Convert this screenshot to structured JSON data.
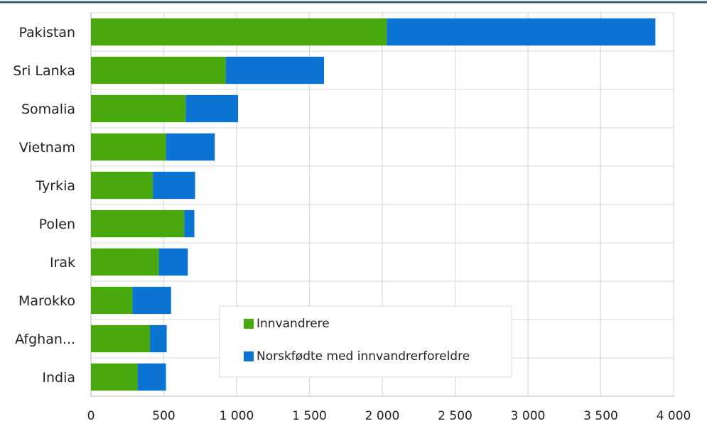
{
  "chart_data": {
    "type": "bar",
    "orientation": "horizontal",
    "stacked": true,
    "title": "",
    "categories": [
      "Pakistan",
      "Sri Lanka",
      "Somalia",
      "Vietnam",
      "Tyrkia",
      "Polen",
      "Irak",
      "Marokko",
      "Afghan...",
      "India"
    ],
    "series": [
      {
        "name": "Innvandrere",
        "color": "#48a80e",
        "values": [
          2030,
          925,
          650,
          515,
          425,
          640,
          465,
          285,
          405,
          320
        ]
      },
      {
        "name": "Norskfødte med innvandrerforeldre",
        "color": "#0b74d3",
        "values": [
          1845,
          675,
          360,
          335,
          290,
          70,
          200,
          265,
          115,
          195
        ]
      }
    ],
    "xlim": [
      0,
      4000
    ],
    "xticks": [
      0,
      500,
      1000,
      1500,
      2000,
      2500,
      3000,
      3500,
      4000
    ],
    "xtick_labels": [
      "0",
      "500",
      "1 000",
      "1 500",
      "2 000",
      "2 500",
      "3 000",
      "3 500",
      "4 000"
    ],
    "xlabel": "",
    "ylabel": "",
    "grid": true,
    "legend_position": "bottom-center, inside plot"
  },
  "colors": {
    "top_rule": "#3e5d7c",
    "grid": "#d9d9d9",
    "axis": "#bfbfbf"
  }
}
